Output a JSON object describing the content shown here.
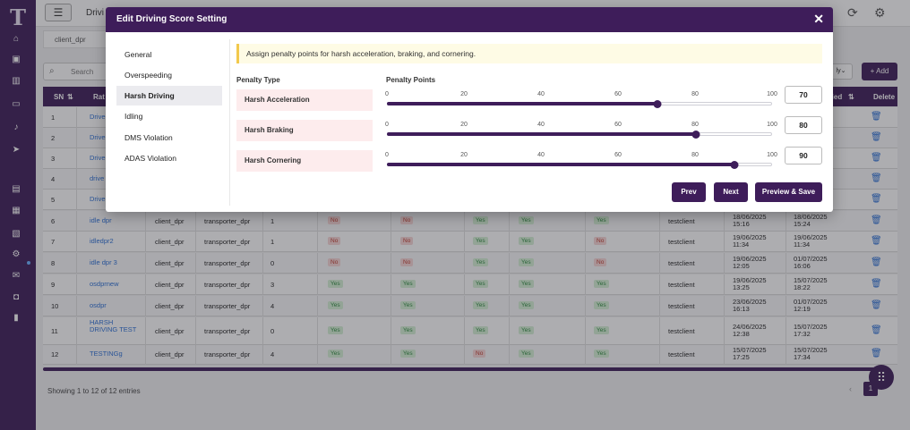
{
  "topbar": {
    "breadcrumb": "Drivi",
    "client_filter": "client_dpr"
  },
  "list": {
    "search_placeholder": "Search",
    "filter_label": "ly",
    "add_label": "+ Add",
    "columns": [
      "SN",
      "Rat",
      "fied",
      "Delete"
    ],
    "rows": [
      {
        "sn": "1",
        "name": "Drive OS",
        "client": "",
        "transporter": "",
        "count": "",
        "flags": [],
        "by": "",
        "created": "",
        "modified": ""
      },
      {
        "sn": "2",
        "name": "Drive Hd",
        "client": "",
        "transporter": "",
        "count": "",
        "flags": [],
        "by": "",
        "created": "",
        "modified": ""
      },
      {
        "sn": "3",
        "name": "Drive ld",
        "client": "",
        "transporter": "",
        "count": "",
        "flags": [],
        "by": "",
        "created": "",
        "modified": ""
      },
      {
        "sn": "4",
        "name": "drive",
        "client": "",
        "transporter": "",
        "count": "",
        "flags": [],
        "by": "",
        "created": "",
        "modified": ""
      },
      {
        "sn": "5",
        "name": "Drive",
        "client": "",
        "transporter": "",
        "count": "",
        "flags": [],
        "by": "",
        "created": "",
        "modified": ""
      },
      {
        "sn": "6",
        "name": "idle dpr",
        "client": "client_dpr",
        "transporter": "transporter_dpr",
        "count": "1",
        "flags": [
          "No",
          "No",
          "Yes",
          "Yes",
          "Yes"
        ],
        "by": "testclient",
        "created": "18/06/2025 15:16",
        "modified": "18/06/2025 15:24"
      },
      {
        "sn": "7",
        "name": "idledpr2",
        "client": "client_dpr",
        "transporter": "transporter_dpr",
        "count": "1",
        "flags": [
          "No",
          "No",
          "Yes",
          "Yes",
          "No"
        ],
        "by": "testclient",
        "created": "19/06/2025 11:34",
        "modified": "19/06/2025 11:34"
      },
      {
        "sn": "8",
        "name": "idle dpr 3",
        "client": "client_dpr",
        "transporter": "transporter_dpr",
        "count": "0",
        "flags": [
          "No",
          "No",
          "Yes",
          "Yes",
          "No"
        ],
        "by": "testclient",
        "created": "19/06/2025 12:05",
        "modified": "01/07/2025 16:06"
      },
      {
        "sn": "9",
        "name": "osdprnew",
        "client": "client_dpr",
        "transporter": "transporter_dpr",
        "count": "3",
        "flags": [
          "Yes",
          "Yes",
          "Yes",
          "Yes",
          "Yes"
        ],
        "by": "testclient",
        "created": "19/06/2025 13:25",
        "modified": "15/07/2025 18:22"
      },
      {
        "sn": "10",
        "name": "osdpr",
        "client": "client_dpr",
        "transporter": "transporter_dpr",
        "count": "4",
        "flags": [
          "Yes",
          "Yes",
          "Yes",
          "Yes",
          "Yes"
        ],
        "by": "testclient",
        "created": "23/06/2025 16:13",
        "modified": "01/07/2025 12:19"
      },
      {
        "sn": "11",
        "name": "HARSH DRIVING TEST",
        "client": "client_dpr",
        "transporter": "transporter_dpr",
        "count": "0",
        "flags": [
          "Yes",
          "Yes",
          "Yes",
          "Yes",
          "Yes"
        ],
        "by": "testclient",
        "created": "24/06/2025 12:38",
        "modified": "15/07/2025 17:32"
      },
      {
        "sn": "12",
        "name": "TESTINGg",
        "client": "client_dpr",
        "transporter": "transporter_dpr",
        "count": "4",
        "flags": [
          "Yes",
          "Yes",
          "No",
          "Yes",
          "Yes"
        ],
        "by": "testclient",
        "created": "15/07/2025 17:25",
        "modified": "15/07/2025 17:34"
      }
    ],
    "info": "Showing 1 to 12 of 12 entries",
    "page": "1"
  },
  "modal": {
    "title": "Edit Driving Score Setting",
    "close_label": "✕",
    "nav": [
      "General",
      "Overspeeding",
      "Harsh Driving",
      "Idling",
      "DMS Violation",
      "ADAS Violation"
    ],
    "active_nav": 2,
    "alert": "Assign penalty points for harsh acceleration, braking, and cornering.",
    "col_type": "Penalty Type",
    "col_points": "Penalty Points",
    "ticks": [
      "0",
      "20",
      "40",
      "60",
      "80",
      "100"
    ],
    "penalties": [
      {
        "type": "Harsh Acceleration",
        "value": "70"
      },
      {
        "type": "Harsh Braking",
        "value": "80"
      },
      {
        "type": "Harsh Cornering",
        "value": "90"
      }
    ],
    "buttons": {
      "prev": "Prev",
      "next": "Next",
      "save": "Preview & Save"
    }
  },
  "icons": {
    "sidebar": [
      "home-icon",
      "car-icon",
      "chart-icon",
      "id-card-icon",
      "bell-icon",
      "rocket-icon",
      "report-icon",
      "fuel-icon",
      "document-icon",
      "gear-icon",
      "mail-icon",
      "badge-icon",
      "battery-icon"
    ],
    "topbar": [
      "refresh-icon",
      "settings-icon"
    ]
  },
  "colors": {
    "primary": "#3e1d5a",
    "alert_bg": "#fefbe5",
    "penalty_bg": "#fdeced"
  }
}
